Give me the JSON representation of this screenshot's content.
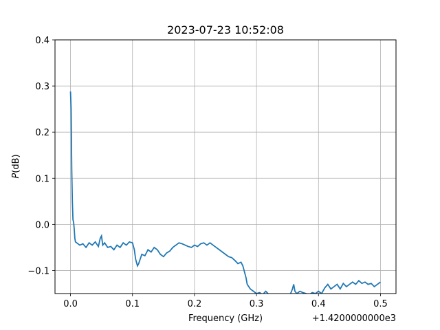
{
  "chart_data": {
    "type": "line",
    "title": "2023-07-23 10:52:08",
    "xlabel": "Frequency (GHz)",
    "ylabel_italic": "P",
    "ylabel_rest": "(dB)",
    "offset_text": "+1.4200000000e3",
    "xlim": [
      -0.025,
      0.525
    ],
    "ylim": [
      -0.15,
      0.4
    ],
    "xticks": [
      0.0,
      0.1,
      0.2,
      0.3,
      0.4,
      0.5
    ],
    "xtick_labels": [
      "0.0",
      "0.1",
      "0.2",
      "0.3",
      "0.4",
      "0.5"
    ],
    "yticks": [
      -0.1,
      0.0,
      0.1,
      0.2,
      0.3,
      0.4
    ],
    "ytick_labels": [
      "−0.1",
      "0.0",
      "0.1",
      "0.2",
      "0.3",
      "0.4"
    ],
    "grid": true,
    "line_color": "#1f77b4",
    "series": [
      {
        "x": [
          0.0,
          0.001,
          0.002,
          0.003,
          0.004,
          0.005,
          0.006,
          0.007,
          0.008,
          0.01,
          0.015,
          0.02,
          0.025,
          0.03,
          0.035,
          0.04,
          0.045,
          0.048,
          0.05,
          0.052,
          0.055,
          0.06,
          0.065,
          0.07,
          0.075,
          0.08,
          0.085,
          0.09,
          0.095,
          0.1,
          0.103,
          0.105,
          0.108,
          0.11,
          0.115,
          0.12,
          0.125,
          0.13,
          0.135,
          0.14,
          0.145,
          0.15,
          0.155,
          0.16,
          0.165,
          0.17,
          0.175,
          0.18,
          0.185,
          0.19,
          0.195,
          0.2,
          0.205,
          0.21,
          0.215,
          0.22,
          0.225,
          0.23,
          0.235,
          0.24,
          0.245,
          0.25,
          0.255,
          0.26,
          0.265,
          0.27,
          0.275,
          0.278,
          0.28,
          0.283,
          0.285,
          0.29,
          0.295,
          0.3,
          0.305,
          0.31,
          0.315,
          0.32,
          0.325,
          0.33,
          0.335,
          0.34,
          0.345,
          0.35,
          0.355,
          0.358,
          0.36,
          0.362,
          0.365,
          0.37,
          0.375,
          0.38,
          0.385,
          0.39,
          0.395,
          0.4,
          0.405,
          0.41,
          0.415,
          0.42,
          0.425,
          0.43,
          0.435,
          0.44,
          0.445,
          0.45,
          0.455,
          0.46,
          0.465,
          0.47,
          0.475,
          0.48,
          0.485,
          0.49,
          0.495,
          0.5
        ],
        "y": [
          0.288,
          0.25,
          0.12,
          0.05,
          0.01,
          0.005,
          -0.01,
          -0.03,
          -0.038,
          -0.04,
          -0.045,
          -0.042,
          -0.05,
          -0.04,
          -0.045,
          -0.038,
          -0.048,
          -0.03,
          -0.025,
          -0.045,
          -0.04,
          -0.05,
          -0.048,
          -0.055,
          -0.045,
          -0.05,
          -0.04,
          -0.045,
          -0.038,
          -0.04,
          -0.055,
          -0.075,
          -0.09,
          -0.085,
          -0.065,
          -0.068,
          -0.055,
          -0.06,
          -0.05,
          -0.055,
          -0.065,
          -0.07,
          -0.062,
          -0.058,
          -0.05,
          -0.045,
          -0.04,
          -0.042,
          -0.045,
          -0.048,
          -0.05,
          -0.045,
          -0.048,
          -0.042,
          -0.04,
          -0.045,
          -0.04,
          -0.045,
          -0.05,
          -0.055,
          -0.06,
          -0.065,
          -0.07,
          -0.072,
          -0.078,
          -0.085,
          -0.082,
          -0.09,
          -0.1,
          -0.115,
          -0.13,
          -0.14,
          -0.145,
          -0.15,
          -0.148,
          -0.152,
          -0.145,
          -0.152,
          -0.155,
          -0.155,
          -0.155,
          -0.155,
          -0.152,
          -0.155,
          -0.15,
          -0.14,
          -0.13,
          -0.145,
          -0.15,
          -0.145,
          -0.148,
          -0.15,
          -0.152,
          -0.148,
          -0.15,
          -0.145,
          -0.15,
          -0.138,
          -0.13,
          -0.14,
          -0.135,
          -0.13,
          -0.14,
          -0.128,
          -0.135,
          -0.13,
          -0.125,
          -0.13,
          -0.122,
          -0.128,
          -0.125,
          -0.13,
          -0.128,
          -0.135,
          -0.13,
          -0.125
        ]
      }
    ]
  }
}
